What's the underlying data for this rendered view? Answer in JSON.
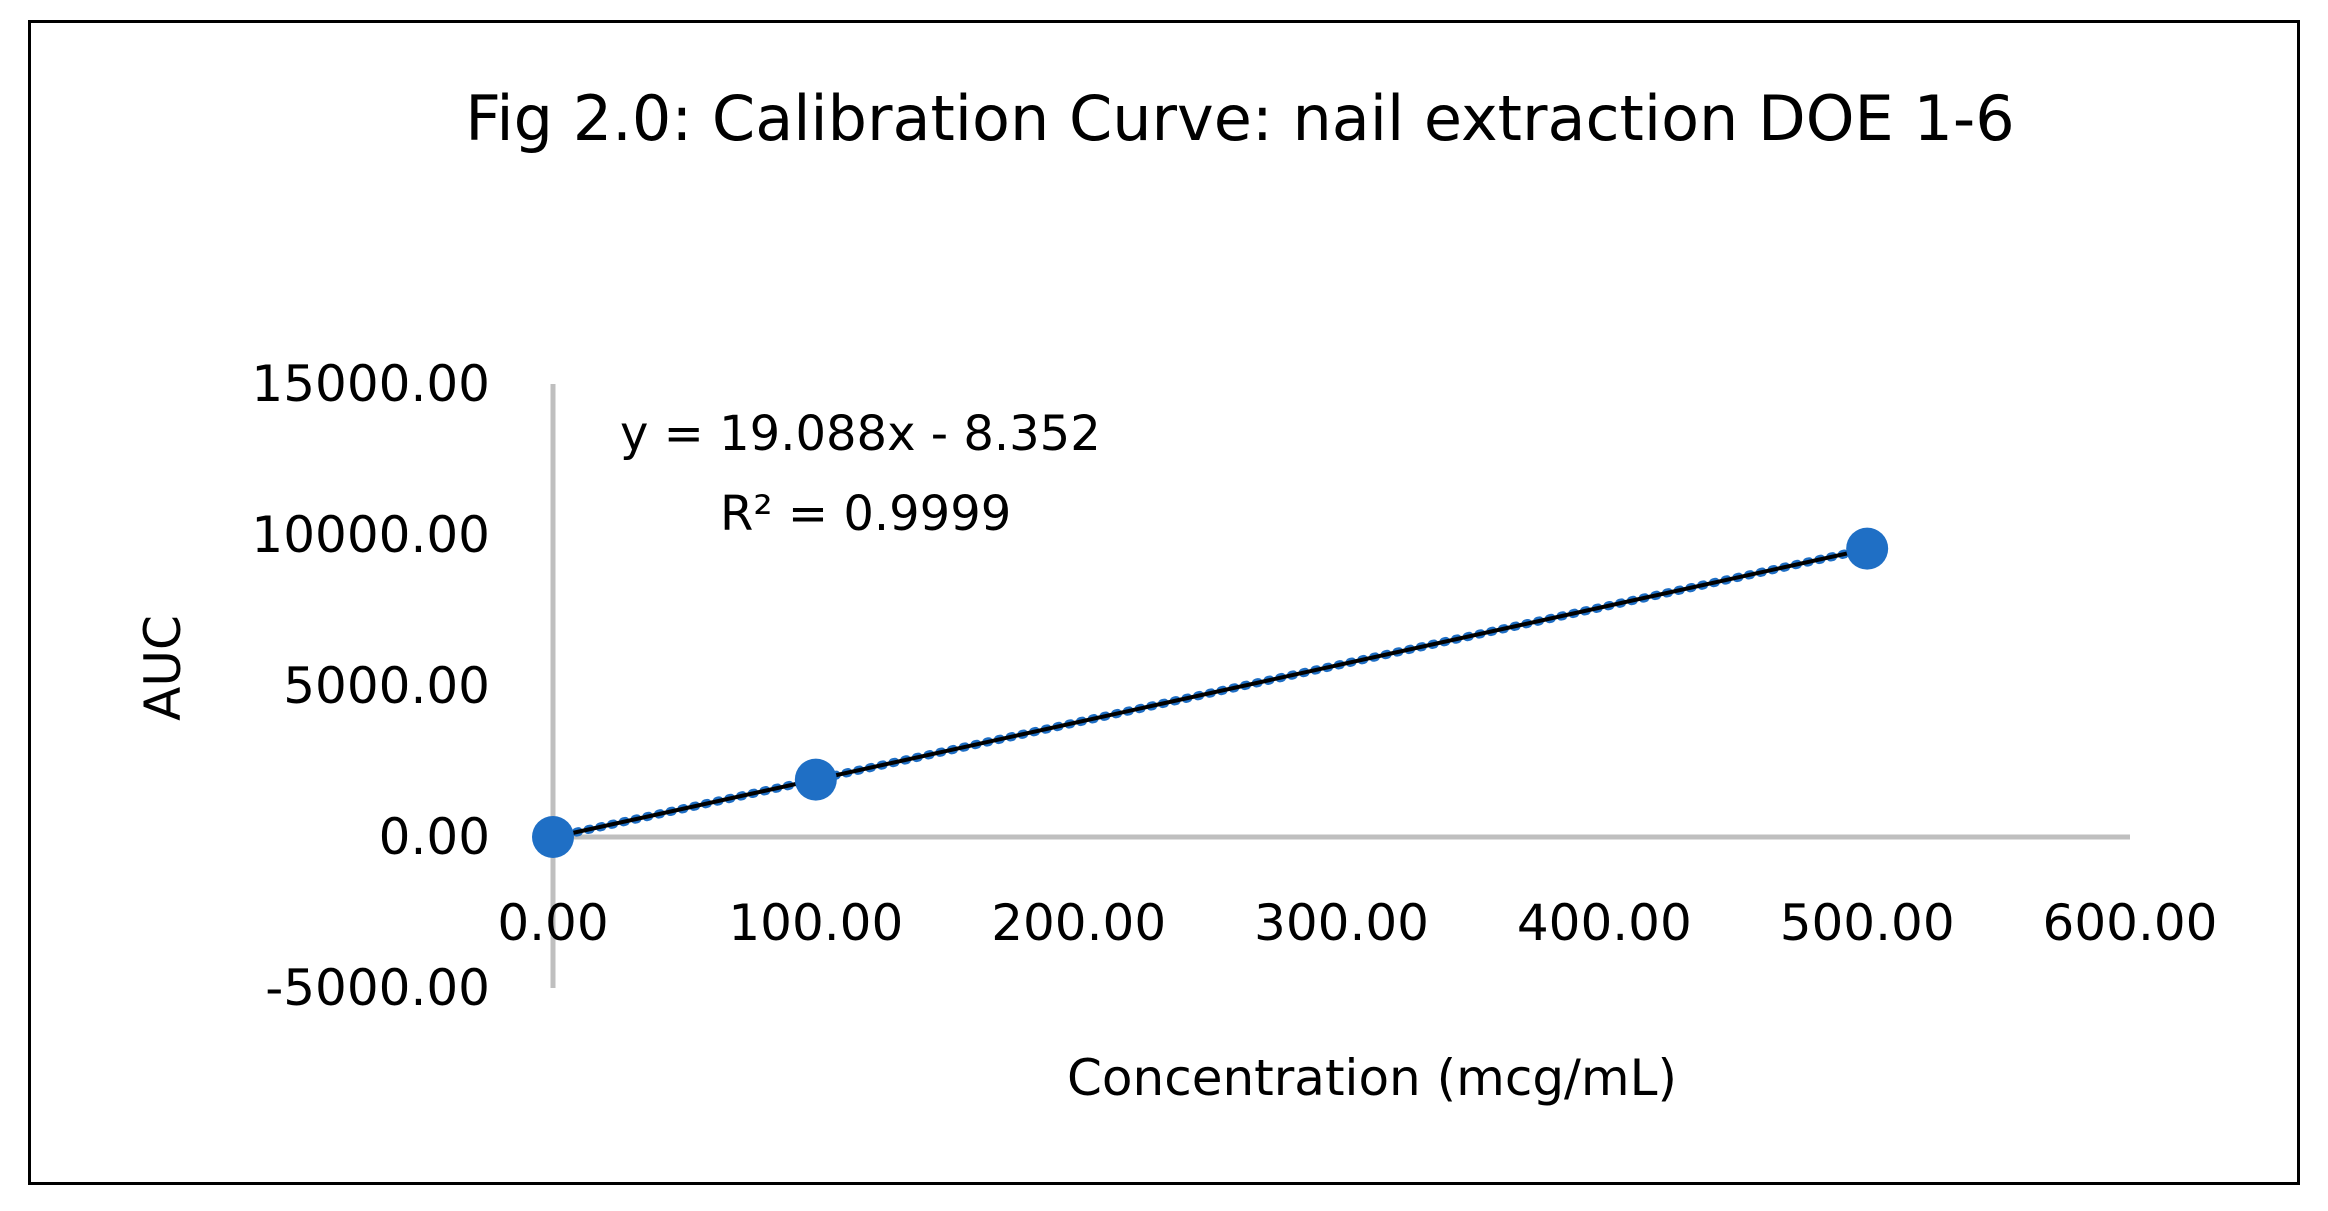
{
  "chart_data": {
    "type": "scatter",
    "title": "Fig 2.0: Calibration Curve: nail extraction DOE 1-6",
    "xlabel": "Concentration (mcg/mL)",
    "ylabel": "AUC",
    "xlim": [
      0,
      600
    ],
    "ylim": [
      -5000,
      15000
    ],
    "x_ticks": [
      "0.00",
      "100.00",
      "200.00",
      "300.00",
      "400.00",
      "500.00",
      "600.00"
    ],
    "y_ticks": [
      "-5000.00",
      "0.00",
      "5000.00",
      "10000.00",
      "15000.00"
    ],
    "series": [
      {
        "points": [
          [
            0,
            0
          ],
          [
            100,
            1900
          ],
          [
            500,
            9550
          ]
        ]
      }
    ],
    "trendline": {
      "type": "linear",
      "slope": 19.088,
      "intercept": -8.352,
      "x_range": [
        0,
        500
      ],
      "equation": "y = 19.088x - 8.352",
      "r_squared": "R² = 0.9999"
    },
    "grid": false,
    "legend": "none"
  },
  "colors": {
    "marker": "#1f6fc5",
    "axis": "#bfbfbf",
    "trendline": "#000000",
    "trendline_dots": "#1f6fc5"
  }
}
